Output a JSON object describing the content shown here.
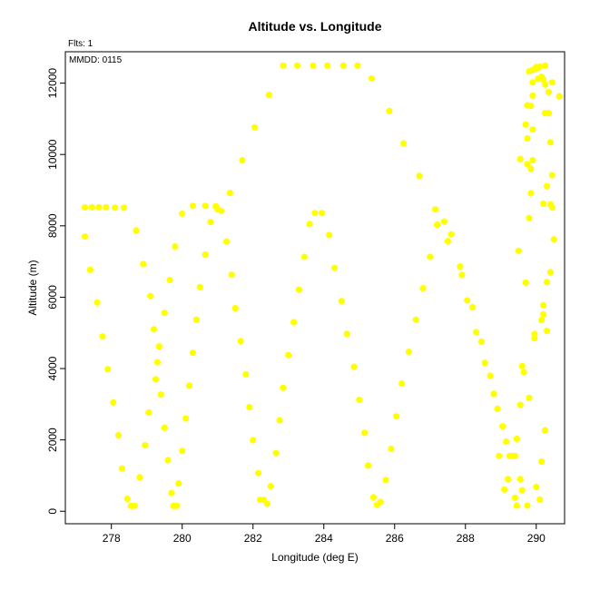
{
  "chart_data": {
    "type": "scatter",
    "title": "Altitude vs. Longitude",
    "xlabel": "Longitude (deg E)",
    "ylabel": "Altitude (m)",
    "annotations": [
      "Flts: 1",
      "MMDD: 0115"
    ],
    "xlim": [
      276.7,
      290.8
    ],
    "ylim": [
      -350,
      12880
    ],
    "xticks": [
      278,
      280,
      282,
      284,
      286,
      288,
      290
    ],
    "yticks": [
      0,
      2000,
      4000,
      6000,
      8000,
      10000,
      12000
    ],
    "grid": false,
    "marker_color": "#ffff00",
    "points": [
      [
        277.25,
        8520
      ],
      [
        277.45,
        8520
      ],
      [
        277.65,
        8520
      ],
      [
        277.85,
        8520
      ],
      [
        278.1,
        8510
      ],
      [
        278.35,
        8510
      ],
      [
        277.25,
        7700
      ],
      [
        277.4,
        6770
      ],
      [
        277.6,
        5850
      ],
      [
        277.75,
        4900
      ],
      [
        277.9,
        3980
      ],
      [
        278.05,
        3050
      ],
      [
        278.2,
        2130
      ],
      [
        278.3,
        1200
      ],
      [
        278.45,
        350
      ],
      [
        278.55,
        150
      ],
      [
        278.65,
        150
      ],
      [
        278.7,
        7870
      ],
      [
        278.8,
        950
      ],
      [
        278.9,
        6930
      ],
      [
        278.95,
        1850
      ],
      [
        279.05,
        2770
      ],
      [
        279.1,
        6030
      ],
      [
        279.2,
        5100
      ],
      [
        279.25,
        3700
      ],
      [
        279.3,
        4180
      ],
      [
        279.35,
        4620
      ],
      [
        279.4,
        3270
      ],
      [
        279.5,
        5560
      ],
      [
        279.5,
        2340
      ],
      [
        279.6,
        1430
      ],
      [
        279.65,
        6480
      ],
      [
        279.7,
        510
      ],
      [
        279.75,
        150
      ],
      [
        279.8,
        7420
      ],
      [
        279.85,
        150
      ],
      [
        279.9,
        780
      ],
      [
        280.0,
        8340
      ],
      [
        280.0,
        1690
      ],
      [
        280.1,
        2600
      ],
      [
        280.2,
        3520
      ],
      [
        280.3,
        4440
      ],
      [
        280.3,
        8560
      ],
      [
        280.4,
        5370
      ],
      [
        280.5,
        6280
      ],
      [
        280.65,
        7190
      ],
      [
        280.65,
        8560
      ],
      [
        280.8,
        8110
      ],
      [
        280.95,
        8550
      ],
      [
        281.0,
        8460
      ],
      [
        281.1,
        8420
      ],
      [
        281.25,
        7560
      ],
      [
        281.35,
        8920
      ],
      [
        281.4,
        6630
      ],
      [
        281.5,
        5690
      ],
      [
        281.65,
        4770
      ],
      [
        281.7,
        9840
      ],
      [
        281.8,
        3840
      ],
      [
        281.9,
        2920
      ],
      [
        282.0,
        1990
      ],
      [
        282.05,
        10760
      ],
      [
        282.15,
        1070
      ],
      [
        282.2,
        320
      ],
      [
        282.3,
        320
      ],
      [
        282.4,
        210
      ],
      [
        282.45,
        11670
      ],
      [
        282.5,
        700
      ],
      [
        282.65,
        1630
      ],
      [
        282.75,
        2550
      ],
      [
        282.85,
        12490
      ],
      [
        282.85,
        3460
      ],
      [
        283.0,
        4380
      ],
      [
        283.15,
        5300
      ],
      [
        283.25,
        12490
      ],
      [
        283.3,
        6210
      ],
      [
        283.45,
        7130
      ],
      [
        283.6,
        8050
      ],
      [
        283.7,
        12490
      ],
      [
        283.75,
        8360
      ],
      [
        283.95,
        8360
      ],
      [
        284.1,
        12490
      ],
      [
        284.15,
        7740
      ],
      [
        284.3,
        6820
      ],
      [
        284.5,
        5890
      ],
      [
        284.55,
        12490
      ],
      [
        284.65,
        4970
      ],
      [
        284.85,
        4050
      ],
      [
        284.95,
        12490
      ],
      [
        285.0,
        3120
      ],
      [
        285.15,
        2200
      ],
      [
        285.25,
        1280
      ],
      [
        285.35,
        12130
      ],
      [
        285.4,
        390
      ],
      [
        285.5,
        180
      ],
      [
        285.6,
        260
      ],
      [
        285.75,
        870
      ],
      [
        285.85,
        11220
      ],
      [
        285.9,
        1750
      ],
      [
        286.05,
        2660
      ],
      [
        286.2,
        3580
      ],
      [
        286.25,
        10310
      ],
      [
        286.4,
        4470
      ],
      [
        286.6,
        5370
      ],
      [
        286.7,
        9400
      ],
      [
        286.8,
        6250
      ],
      [
        287.0,
        7130
      ],
      [
        287.15,
        8460
      ],
      [
        287.2,
        8030
      ],
      [
        287.4,
        8120
      ],
      [
        287.5,
        7570
      ],
      [
        287.6,
        7760
      ],
      [
        287.85,
        6860
      ],
      [
        287.9,
        6620
      ],
      [
        288.05,
        5910
      ],
      [
        288.2,
        5720
      ],
      [
        288.3,
        5020
      ],
      [
        288.45,
        4750
      ],
      [
        288.55,
        4160
      ],
      [
        288.7,
        3800
      ],
      [
        288.8,
        3290
      ],
      [
        288.9,
        2870
      ],
      [
        288.95,
        1550
      ],
      [
        289.05,
        2380
      ],
      [
        289.1,
        610
      ],
      [
        289.15,
        1950
      ],
      [
        289.2,
        900
      ],
      [
        289.25,
        1550
      ],
      [
        289.3,
        1550
      ],
      [
        289.4,
        1550
      ],
      [
        289.45,
        2030
      ],
      [
        289.4,
        380
      ],
      [
        289.45,
        160
      ],
      [
        289.55,
        2980
      ],
      [
        289.55,
        900
      ],
      [
        289.6,
        590
      ],
      [
        289.5,
        7300
      ],
      [
        289.55,
        9870
      ],
      [
        289.6,
        4070
      ],
      [
        289.65,
        3900
      ],
      [
        289.7,
        10840
      ],
      [
        289.7,
        6410
      ],
      [
        289.75,
        10450
      ],
      [
        289.75,
        9730
      ],
      [
        289.75,
        11380
      ],
      [
        289.75,
        160
      ],
      [
        289.8,
        12330
      ],
      [
        289.8,
        3180
      ],
      [
        289.8,
        8220
      ],
      [
        289.85,
        8910
      ],
      [
        289.85,
        9600
      ],
      [
        289.85,
        11360
      ],
      [
        289.9,
        11650
      ],
      [
        289.9,
        10700
      ],
      [
        289.9,
        12020
      ],
      [
        289.9,
        9840
      ],
      [
        289.9,
        12370
      ],
      [
        289.95,
        12400
      ],
      [
        289.95,
        4850
      ],
      [
        289.95,
        4970
      ],
      [
        290.0,
        12450
      ],
      [
        290.0,
        680
      ],
      [
        290.05,
        12420
      ],
      [
        290.05,
        12120
      ],
      [
        290.1,
        12460
      ],
      [
        290.1,
        330
      ],
      [
        290.15,
        12180
      ],
      [
        290.15,
        5360
      ],
      [
        290.15,
        1390
      ],
      [
        290.2,
        5520
      ],
      [
        290.2,
        5780
      ],
      [
        290.2,
        8620
      ],
      [
        290.2,
        12100
      ],
      [
        290.25,
        11960
      ],
      [
        290.25,
        12490
      ],
      [
        290.25,
        11160
      ],
      [
        290.25,
        2270
      ],
      [
        290.3,
        5060
      ],
      [
        290.3,
        6420
      ],
      [
        290.3,
        9110
      ],
      [
        290.35,
        11750
      ],
      [
        290.35,
        11160
      ],
      [
        290.4,
        10340
      ],
      [
        290.4,
        8600
      ],
      [
        290.4,
        6700
      ],
      [
        290.45,
        12020
      ],
      [
        290.45,
        9420
      ],
      [
        290.45,
        8520
      ],
      [
        290.5,
        7620
      ],
      [
        290.65,
        11630
      ]
    ]
  }
}
